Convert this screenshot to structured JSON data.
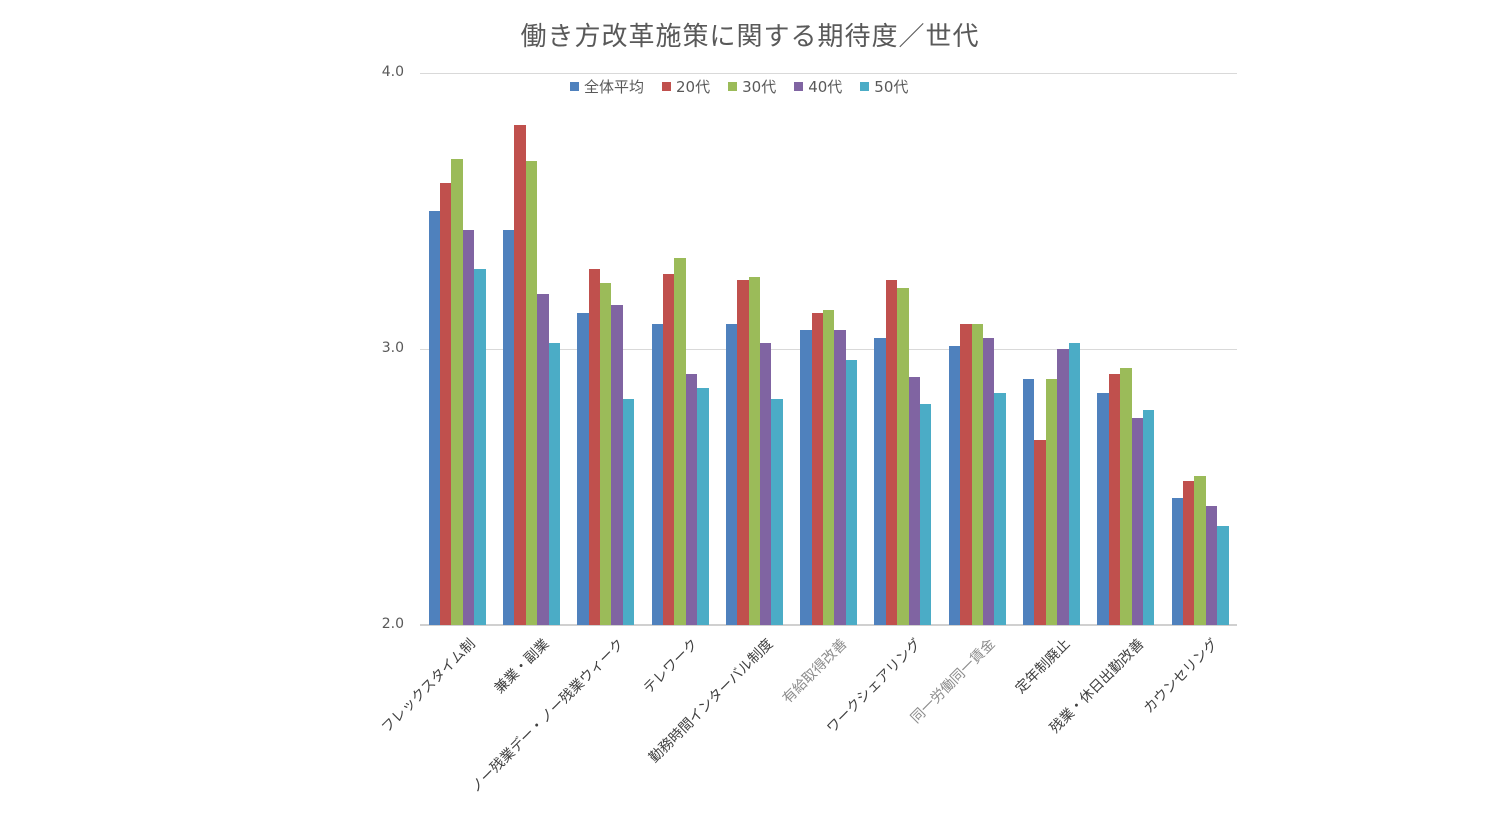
{
  "chart_data": {
    "type": "bar",
    "title": "働き方改革施策に関する期待度／世代",
    "xlabel": "",
    "ylabel": "",
    "ylim": [
      2.0,
      4.0
    ],
    "yticks": [
      "4.0",
      "3.0",
      "2.0"
    ],
    "grid": true,
    "legend_position": "top",
    "categories": [
      "フレックスタイム制",
      "兼業・副業",
      "ノー残業デー・ノー残業ウィーク",
      "テレワーク",
      "勤務時間インターバル制度",
      "有給取得改善",
      "ワークシェアリング",
      "同一労働同一賃金",
      "定年制廃止",
      "残業・休日出勤改善",
      "カウンセリング"
    ],
    "series": [
      {
        "name": "全体平均",
        "color": "#4F81BD",
        "values": [
          3.5,
          3.43,
          3.13,
          3.09,
          3.09,
          3.07,
          3.04,
          3.01,
          2.89,
          2.84,
          2.46
        ]
      },
      {
        "name": "20代",
        "color": "#C0504D",
        "values": [
          3.6,
          3.81,
          3.29,
          3.27,
          3.25,
          3.13,
          3.25,
          3.09,
          2.67,
          2.91,
          2.52
        ]
      },
      {
        "name": "30代",
        "color": "#9BBB59",
        "values": [
          3.69,
          3.68,
          3.24,
          3.33,
          3.26,
          3.14,
          3.22,
          3.09,
          2.89,
          2.93,
          2.54
        ]
      },
      {
        "name": "40代",
        "color": "#8064A2",
        "values": [
          3.43,
          3.2,
          3.16,
          2.91,
          3.02,
          3.07,
          2.9,
          3.04,
          3.0,
          2.75,
          2.43
        ]
      },
      {
        "name": "50代",
        "color": "#4BACC6",
        "values": [
          3.29,
          3.02,
          2.82,
          2.86,
          2.82,
          2.96,
          2.8,
          2.84,
          3.02,
          2.78,
          2.36
        ]
      }
    ],
    "light_labels": [
      5,
      7
    ]
  }
}
